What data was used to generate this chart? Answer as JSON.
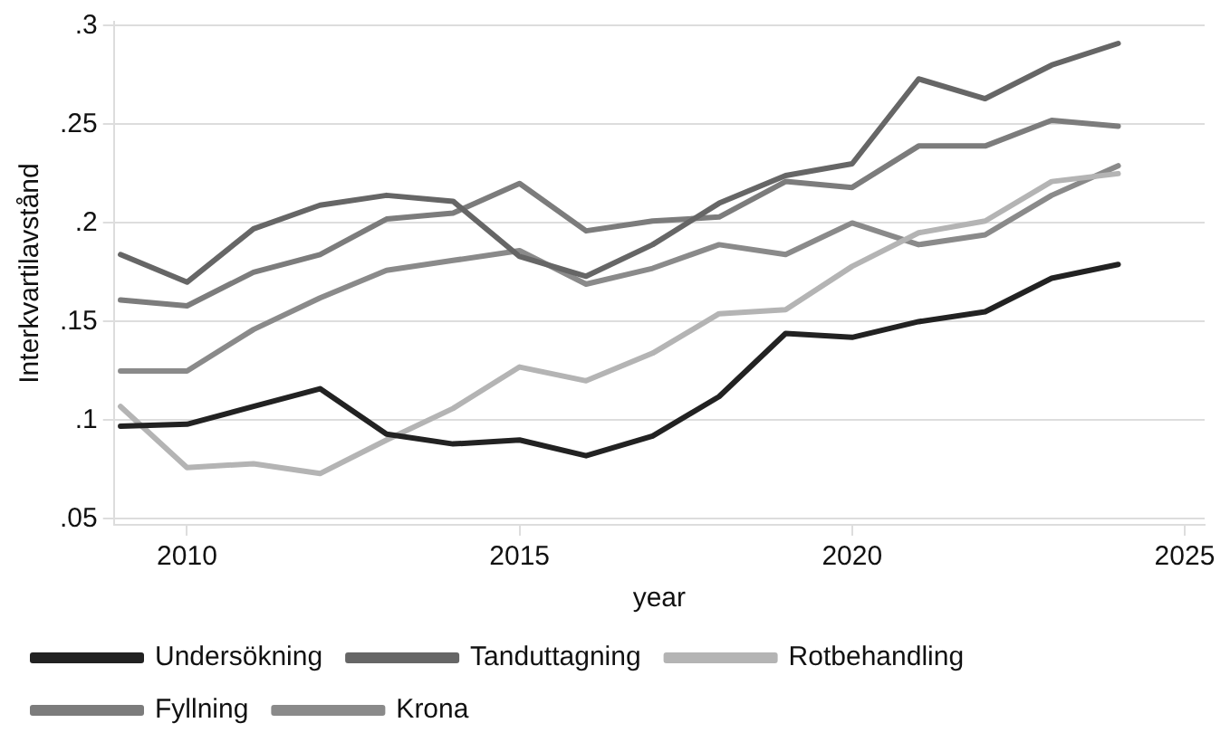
{
  "chart_data": {
    "type": "line",
    "xlabel": "year",
    "ylabel": "Interkvartilavstånd",
    "x": [
      2009,
      2010,
      2011,
      2012,
      2013,
      2014,
      2015,
      2016,
      2017,
      2018,
      2019,
      2020,
      2021,
      2022,
      2023,
      2024
    ],
    "series": [
      {
        "name": "Undersökning",
        "color": "#222222",
        "values": [
          0.097,
          0.098,
          0.107,
          0.116,
          0.093,
          0.088,
          0.09,
          0.082,
          0.092,
          0.112,
          0.144,
          0.142,
          0.15,
          0.155,
          0.172,
          0.179
        ]
      },
      {
        "name": "Tanduttagning",
        "color": "#666666",
        "values": [
          0.184,
          0.17,
          0.197,
          0.209,
          0.214,
          0.211,
          0.183,
          0.173,
          0.189,
          0.21,
          0.224,
          0.23,
          0.273,
          0.263,
          0.28,
          0.291
        ]
      },
      {
        "name": "Rotbehandling",
        "color": "#b4b4b4",
        "values": [
          0.107,
          0.076,
          0.078,
          0.073,
          0.09,
          0.106,
          0.127,
          0.12,
          0.134,
          0.154,
          0.156,
          0.178,
          0.195,
          0.201,
          0.221,
          0.225
        ]
      },
      {
        "name": "Fyllning",
        "color": "#7c7c7c",
        "values": [
          0.161,
          0.158,
          0.175,
          0.184,
          0.202,
          0.205,
          0.22,
          0.196,
          0.201,
          0.203,
          0.221,
          0.218,
          0.239,
          0.239,
          0.252,
          0.249
        ]
      },
      {
        "name": "Krona",
        "color": "#8a8a8a",
        "values": [
          0.125,
          0.125,
          0.146,
          0.162,
          0.176,
          0.181,
          0.186,
          0.169,
          0.177,
          0.189,
          0.184,
          0.2,
          0.189,
          0.194,
          0.214,
          0.229
        ]
      }
    ],
    "xlim": [
      2008.9,
      2025.3
    ],
    "xticks": [
      2010,
      2015,
      2020,
      2025
    ],
    "ylim": [
      0.047,
      0.302
    ],
    "yticks": [
      {
        "value": 0.05,
        "label": ".05"
      },
      {
        "value": 0.1,
        "label": ".1"
      },
      {
        "value": 0.15,
        "label": ".15"
      },
      {
        "value": 0.2,
        "label": ".2"
      },
      {
        "value": 0.25,
        "label": ".25"
      },
      {
        "value": 0.3,
        "label": ".3"
      }
    ],
    "grid": "y",
    "legend": "bottom left",
    "marker": "none",
    "line_style": "solid"
  }
}
